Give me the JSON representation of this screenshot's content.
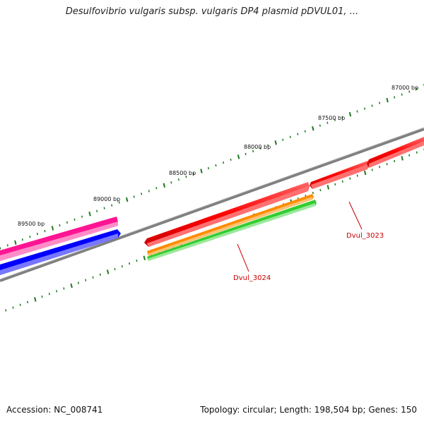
{
  "title": "Desulfovibrio vulgaris subsp. vulgaris DP4 plasmid pDVUL01, ...",
  "footer": {
    "accession": "Accession: NC_008741",
    "summary": "Topology: circular; Length: 198,504 bp; Genes: 150"
  },
  "ruler": {
    "labels": [
      "87000 bp",
      "87500 bp",
      "88000 bp",
      "88500 bp",
      "89000 bp",
      "89500 bp"
    ],
    "tick_color": "#1e7a1e"
  },
  "genes": [
    {
      "label": "Dvul_3023",
      "color": "#ff0000"
    },
    {
      "label": "Dvul_3024",
      "color": "#ff0000"
    }
  ],
  "colors": {
    "backbone": "#808080",
    "gene_red": "#ff0000",
    "gene_pink": "#ff1493",
    "gene_blue": "#0000ff",
    "gene_orange": "#ff8c00",
    "gene_green": "#32cd32",
    "label_red": "#cc0000"
  }
}
